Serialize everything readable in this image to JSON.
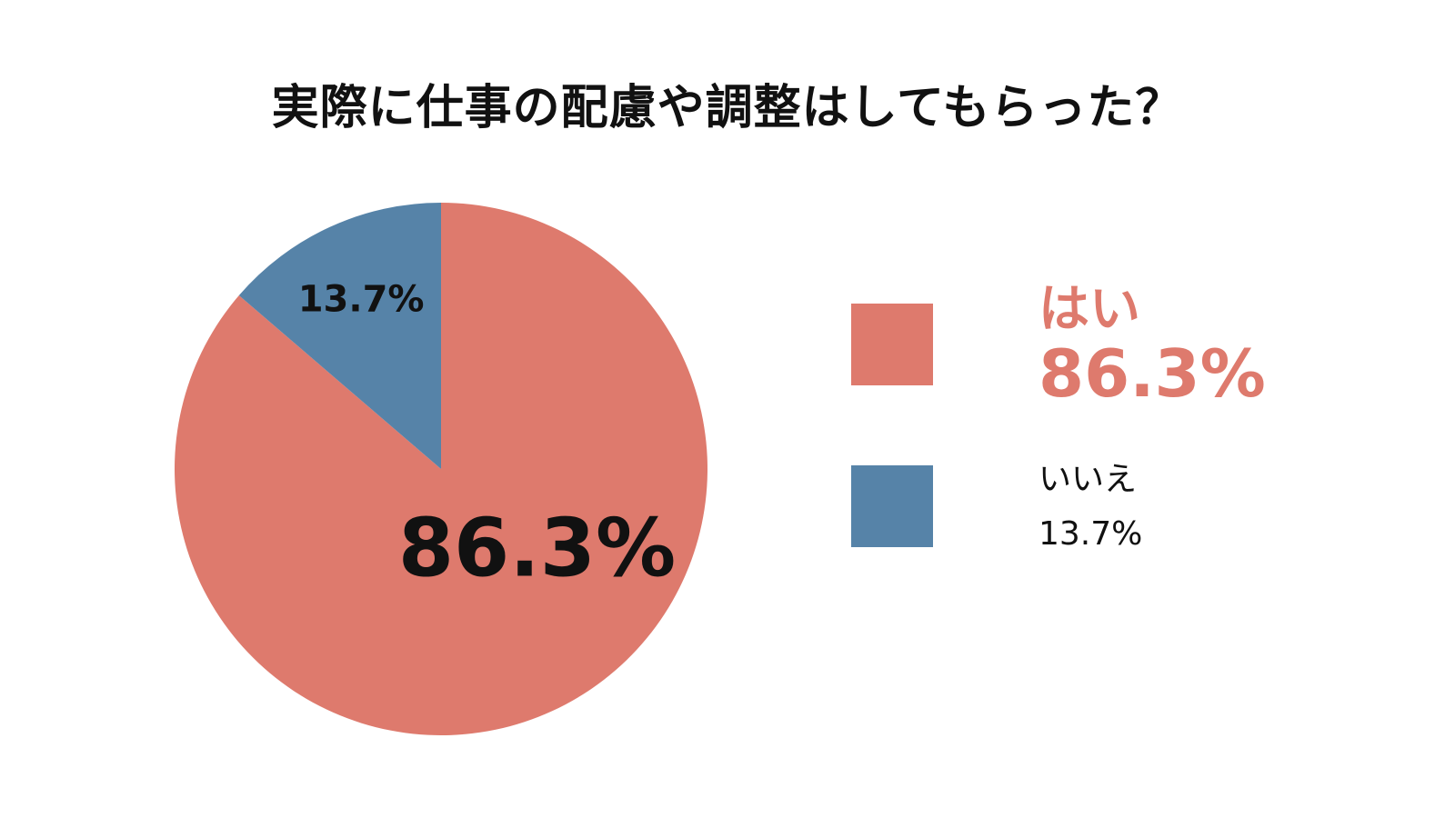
{
  "chart_data": {
    "type": "pie",
    "title": "実際に仕事の配慮や調整はしてもらった？",
    "slices": [
      {
        "name": "はい",
        "value": 86.3,
        "label": "86.3%",
        "color": "#DE7A6D"
      },
      {
        "name": "いいえ",
        "value": 13.7,
        "label": "13.7%",
        "color": "#5683A8"
      }
    ],
    "legend_placement": "right"
  }
}
